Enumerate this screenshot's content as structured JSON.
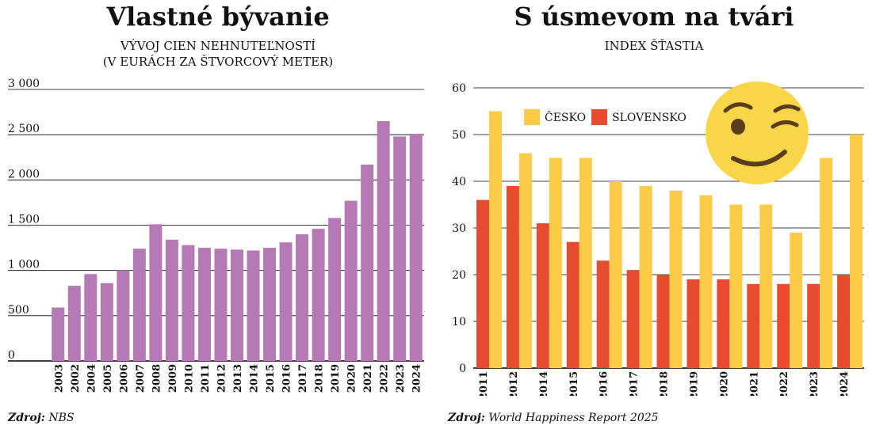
{
  "charts": [
    {
      "heading": "Vlastné bývanie",
      "subtitle_line1": "VÝVOJ CIEN NEHNUTEĽNOSTÍ",
      "subtitle_line2": "(V EURÁCH ZA ŠTVORCOVÝ METER)",
      "source_label": "Zdroj:",
      "source_value": "NBS",
      "colors": {
        "bar": "#b57ab6"
      }
    },
    {
      "heading": "S úsmevom na tvári",
      "subtitle_line1": "INDEX ŠŤASTIA",
      "source_label": "Zdroj:",
      "source_value": "World Happiness Report 2025",
      "colors": {
        "cesko": "#fccb47",
        "slovensko": "#e84c30"
      },
      "icons": [
        "winking-face-icon"
      ]
    }
  ],
  "chart_data": [
    {
      "type": "bar",
      "categories": [
        "2003",
        "2002",
        "2004",
        "2005",
        "2006",
        "2007",
        "2008",
        "2009",
        "2010",
        "2011",
        "2012",
        "2013",
        "2014",
        "2015",
        "2016",
        "2017",
        "2018",
        "2019",
        "2020",
        "2021",
        "2022",
        "2023",
        "2024"
      ],
      "values": [
        590,
        830,
        960,
        860,
        1000,
        1240,
        1510,
        1340,
        1280,
        1250,
        1240,
        1230,
        1220,
        1250,
        1310,
        1400,
        1460,
        1580,
        1770,
        2170,
        2650,
        2480,
        2510
      ],
      "ylim": [
        0,
        3000
      ],
      "yticks": [
        0,
        500,
        1000,
        1500,
        2000,
        2500,
        3000
      ],
      "ytick_labels": [
        "0",
        "500",
        "1 000",
        "1 500",
        "2 000",
        "2 500",
        "3 000"
      ],
      "grid": true
    },
    {
      "type": "bar",
      "categories": [
        "2011",
        "2012",
        "2014",
        "2015",
        "2016",
        "2017",
        "2018",
        "2019",
        "2020",
        "2021",
        "2022",
        "2023",
        "2024"
      ],
      "series": [
        {
          "name": "SLOVENSKO",
          "values": [
            36,
            39,
            31,
            27,
            23,
            21,
            20,
            19,
            19,
            18,
            18,
            18,
            20
          ]
        },
        {
          "name": "ČESKO",
          "values": [
            55,
            46,
            45,
            45,
            40,
            39,
            38,
            37,
            35,
            35,
            29,
            45,
            50
          ]
        }
      ],
      "ylim": [
        0,
        60
      ],
      "yticks": [
        0,
        10,
        20,
        30,
        40,
        50,
        60
      ],
      "ytick_labels": [
        "0",
        "10",
        "20",
        "30",
        "40",
        "50",
        "60"
      ],
      "legend_placement": "top-left",
      "grid": true
    }
  ]
}
